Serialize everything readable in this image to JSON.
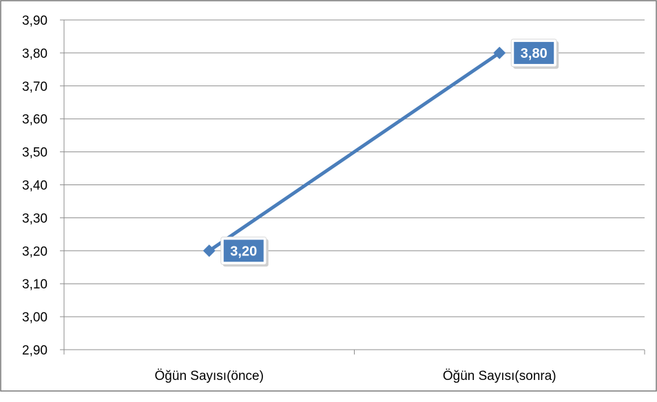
{
  "chart_data": {
    "type": "line",
    "categories": [
      "Öğün Sayısı(önce)",
      "Öğün Sayısı(sonra)"
    ],
    "series": [
      {
        "values": [
          3.2,
          3.8
        ],
        "labels": [
          "3,20",
          "3,80"
        ],
        "color": "#4a7ebb"
      }
    ],
    "ylim": [
      2.9,
      3.9
    ],
    "yticks": [
      "2,90",
      "3,00",
      "3,10",
      "3,20",
      "3,30",
      "3,40",
      "3,50",
      "3,60",
      "3,70",
      "3,80",
      "3,90"
    ],
    "grid": true,
    "marker": "diamond",
    "label_fill": "#4a7ebb",
    "label_text_color": "#ffffff"
  }
}
